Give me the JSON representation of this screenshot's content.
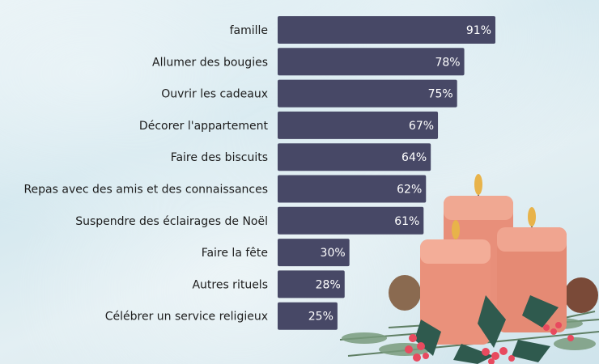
{
  "chart_data": {
    "type": "bar",
    "orientation": "horizontal",
    "title": "",
    "xlabel": "",
    "ylabel": "",
    "xlim": [
      0,
      100
    ],
    "grid": false,
    "categories": [
      "famille",
      "Allumer des bougies",
      "Ouvrir les cadeaux",
      "Décorer l'appartement",
      "Faire des biscuits",
      "Repas avec des amis et des connaissances",
      "Suspendre des éclairages de Noël",
      "Faire la fête",
      "Autres rituels",
      "Célébrer un service religieux"
    ],
    "values": [
      91,
      78,
      75,
      67,
      64,
      62,
      61,
      30,
      28,
      25
    ],
    "value_labels": [
      "91%",
      "78%",
      "75%",
      "67%",
      "64%",
      "62%",
      "61%",
      "30%",
      "28%",
      "25%"
    ],
    "bar_color": "#474866"
  },
  "decoration": {
    "icon": "candles-illustration-icon"
  }
}
